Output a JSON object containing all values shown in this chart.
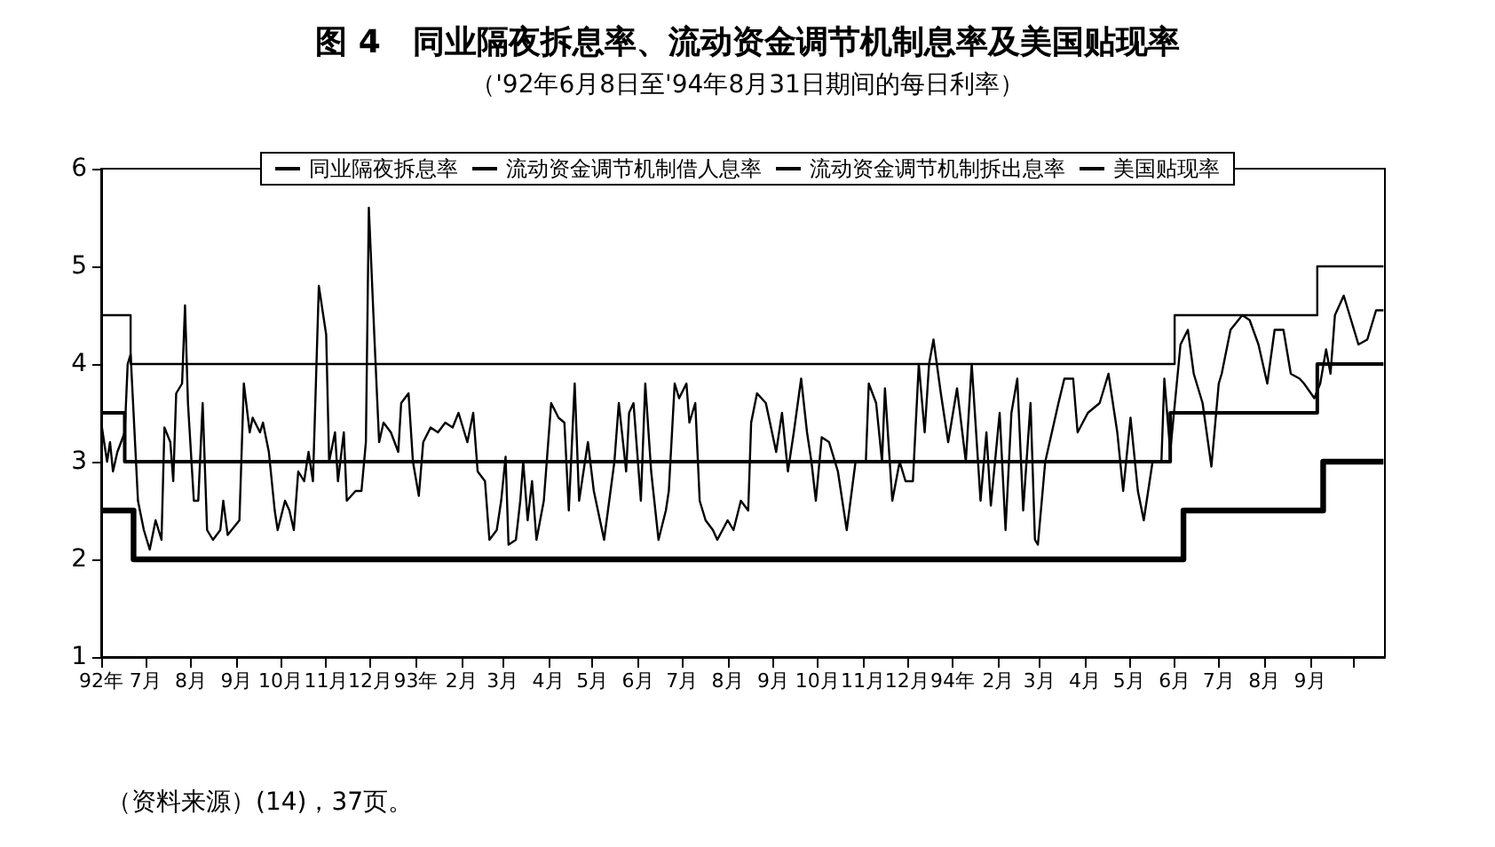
{
  "chart_data": {
    "type": "line",
    "title": "图 4　同业隔夜拆息率、流动资金调节机制息率及美国贴现率",
    "subtitle": "（'92年6月8日至'94年8月31日期间的每日利率）",
    "annotations": [
      "（资料来源）(14)，37页。"
    ],
    "legend": "top",
    "grid": false,
    "marker": "none",
    "line_style": "solid",
    "xlim": [
      "1992-06-01",
      "1994-10-22"
    ],
    "xticks": [
      {
        "value": "1992-06-01",
        "label": "92年"
      },
      {
        "value": "1992-07-01",
        "label": "7月"
      },
      {
        "value": "1992-08-01",
        "label": "8月"
      },
      {
        "value": "1992-09-01",
        "label": "9月"
      },
      {
        "value": "1992-10-01",
        "label": "10月"
      },
      {
        "value": "1992-11-01",
        "label": "11月"
      },
      {
        "value": "1992-12-01",
        "label": "12月"
      },
      {
        "value": "1993-01-01",
        "label": "93年"
      },
      {
        "value": "1993-02-01",
        "label": "2月"
      },
      {
        "value": "1993-03-01",
        "label": "3月"
      },
      {
        "value": "1993-04-01",
        "label": "4月"
      },
      {
        "value": "1993-05-01",
        "label": "5月"
      },
      {
        "value": "1993-06-01",
        "label": "6月"
      },
      {
        "value": "1993-07-01",
        "label": "7月"
      },
      {
        "value": "1993-08-01",
        "label": "8月"
      },
      {
        "value": "1993-09-01",
        "label": "9月"
      },
      {
        "value": "1993-10-01",
        "label": "10月"
      },
      {
        "value": "1993-11-01",
        "label": "11月"
      },
      {
        "value": "1993-12-01",
        "label": "12月"
      },
      {
        "value": "1994-01-01",
        "label": "94年"
      },
      {
        "value": "1994-02-01",
        "label": "2月"
      },
      {
        "value": "1994-03-01",
        "label": "3月"
      },
      {
        "value": "1994-04-01",
        "label": "4月"
      },
      {
        "value": "1994-05-01",
        "label": "5月"
      },
      {
        "value": "1994-06-01",
        "label": "6月"
      },
      {
        "value": "1994-07-01",
        "label": "7月"
      },
      {
        "value": "1994-08-01",
        "label": "8月"
      },
      {
        "value": "1994-09-01",
        "label": "9月"
      },
      {
        "value": "1994-10-01",
        "label": null
      }
    ],
    "ylim": [
      1,
      6
    ],
    "yticks": [
      1,
      2,
      3,
      4,
      5,
      6
    ],
    "series": [
      {
        "name": "同业隔夜拆息率",
        "type": "line",
        "color": "#000000",
        "x": [
          "1992-06-01",
          "1992-06-05",
          "1992-06-07",
          "1992-06-09",
          "1992-06-12",
          "1992-06-17",
          "1992-06-19",
          "1992-06-21",
          "1992-06-23",
          "1992-06-26",
          "1992-06-30",
          "1992-07-04",
          "1992-07-08",
          "1992-07-12",
          "1992-07-14",
          "1992-07-18",
          "1992-07-20",
          "1992-07-22",
          "1992-07-26",
          "1992-07-28",
          "1992-07-30",
          "1992-08-03",
          "1992-08-06",
          "1992-08-09",
          "1992-08-12",
          "1992-08-16",
          "1992-08-21",
          "1992-08-23",
          "1992-08-26",
          "1992-09-03",
          "1992-09-06",
          "1992-09-10",
          "1992-09-12",
          "1992-09-17",
          "1992-09-19",
          "1992-09-23",
          "1992-09-27",
          "1992-09-29",
          "1992-10-04",
          "1992-10-07",
          "1992-10-10",
          "1992-10-13",
          "1992-10-17",
          "1992-10-20",
          "1992-10-23",
          "1992-10-27",
          "1992-11-01",
          "1992-11-03",
          "1992-11-07",
          "1992-11-09",
          "1992-11-13",
          "1992-11-15",
          "1992-11-21",
          "1992-11-25",
          "1992-11-28",
          "1992-11-30",
          "1992-12-04",
          "1992-12-07",
          "1992-12-10",
          "1992-12-15",
          "1992-12-20",
          "1992-12-22",
          "1992-12-27",
          "1992-12-30",
          "1993-01-03",
          "1993-01-06",
          "1993-01-11",
          "1993-01-16",
          "1993-01-21",
          "1993-01-26",
          "1993-01-30",
          "1993-02-05",
          "1993-02-09",
          "1993-02-12",
          "1993-02-17",
          "1993-02-20",
          "1993-02-25",
          "1993-02-28",
          "1993-03-03",
          "1993-03-05",
          "1993-03-10",
          "1993-03-13",
          "1993-03-15",
          "1993-03-18",
          "1993-03-21",
          "1993-03-24",
          "1993-03-29",
          "1993-04-03",
          "1993-04-08",
          "1993-04-12",
          "1993-04-15",
          "1993-04-19",
          "1993-04-22",
          "1993-04-28",
          "1993-05-02",
          "1993-05-09",
          "1993-05-16",
          "1993-05-19",
          "1993-05-24",
          "1993-05-26",
          "1993-05-29",
          "1993-06-03",
          "1993-06-06",
          "1993-06-10",
          "1993-06-15",
          "1993-06-20",
          "1993-06-22",
          "1993-06-26",
          "1993-06-29",
          "1993-07-04",
          "1993-07-06",
          "1993-07-10",
          "1993-07-13",
          "1993-07-17",
          "1993-07-22",
          "1993-07-25",
          "1993-08-01",
          "1993-08-05",
          "1993-08-10",
          "1993-08-15",
          "1993-08-17",
          "1993-08-21",
          "1993-08-27",
          "1993-09-03",
          "1993-09-07",
          "1993-09-11",
          "1993-09-15",
          "1993-09-20",
          "1993-09-24",
          "1993-09-27",
          "1993-09-30",
          "1993-10-04",
          "1993-10-09",
          "1993-10-15",
          "1993-10-21",
          "1993-10-27",
          "1993-11-03",
          "1993-11-05",
          "1993-11-10",
          "1993-11-14",
          "1993-11-16",
          "1993-11-21",
          "1993-11-26",
          "1993-11-30",
          "1993-12-05",
          "1993-12-09",
          "1993-12-13",
          "1993-12-16",
          "1993-12-19",
          "1993-12-24",
          "1993-12-29",
          "1994-01-04",
          "1994-01-10",
          "1994-01-14",
          "1994-01-20",
          "1994-01-24",
          "1994-01-27",
          "1994-02-02",
          "1994-02-06",
          "1994-02-10",
          "1994-02-14",
          "1994-02-18",
          "1994-02-23",
          "1994-02-26",
          "1994-02-28",
          "1994-03-05",
          "1994-03-14",
          "1994-03-18",
          "1994-03-24",
          "1994-03-27",
          "1994-04-03",
          "1994-04-11",
          "1994-04-17",
          "1994-04-23",
          "1994-04-27",
          "1994-05-02",
          "1994-05-07",
          "1994-05-11",
          "1994-05-17",
          "1994-05-23",
          "1994-05-25",
          "1994-05-29",
          "1994-06-05",
          "1994-06-10",
          "1994-06-14",
          "1994-06-20",
          "1994-06-26",
          "1994-07-01",
          "1994-07-03",
          "1994-07-09",
          "1994-07-17",
          "1994-07-22",
          "1994-07-28",
          "1994-08-03",
          "1994-08-08",
          "1994-08-14",
          "1994-08-19",
          "1994-08-25",
          "1994-08-28",
          "1994-09-04",
          "1994-09-08",
          "1994-09-12",
          "1994-09-15",
          "1994-09-18",
          "1994-09-24",
          "1994-09-28",
          "1994-10-04",
          "1994-10-10",
          "1994-10-16",
          "1994-10-21"
        ],
        "values": [
          3.4,
          3.0,
          3.2,
          2.9,
          3.1,
          3.3,
          4.0,
          4.1,
          3.5,
          2.6,
          2.3,
          2.1,
          2.4,
          2.2,
          3.35,
          3.2,
          2.8,
          3.7,
          3.8,
          4.6,
          3.6,
          2.6,
          2.6,
          3.6,
          2.3,
          2.2,
          2.3,
          2.6,
          2.25,
          2.4,
          3.8,
          3.3,
          3.45,
          3.3,
          3.4,
          3.1,
          2.5,
          2.3,
          2.6,
          2.5,
          2.3,
          2.9,
          2.8,
          3.1,
          2.8,
          4.8,
          4.3,
          3.0,
          3.3,
          2.8,
          3.3,
          2.6,
          2.7,
          2.7,
          3.2,
          5.6,
          4.2,
          3.2,
          3.4,
          3.3,
          3.1,
          3.6,
          3.7,
          3.0,
          2.65,
          3.2,
          3.35,
          3.3,
          3.4,
          3.35,
          3.5,
          3.2,
          3.5,
          2.9,
          2.8,
          2.2,
          2.3,
          2.6,
          3.05,
          2.15,
          2.2,
          2.6,
          3.0,
          2.4,
          2.8,
          2.2,
          2.6,
          3.6,
          3.45,
          3.4,
          2.5,
          3.8,
          2.6,
          3.2,
          2.7,
          2.2,
          3.0,
          3.6,
          2.9,
          3.5,
          3.6,
          2.6,
          3.8,
          2.9,
          2.2,
          2.5,
          2.7,
          3.8,
          3.65,
          3.8,
          3.4,
          3.6,
          2.6,
          2.4,
          2.3,
          2.2,
          2.4,
          2.3,
          2.6,
          2.5,
          3.4,
          3.7,
          3.6,
          3.1,
          3.5,
          2.9,
          3.3,
          3.85,
          3.3,
          3.0,
          2.6,
          3.25,
          3.2,
          2.9,
          2.3,
          3.0,
          3.0,
          3.8,
          3.6,
          3.0,
          3.75,
          2.6,
          3.0,
          2.8,
          2.8,
          4.0,
          3.3,
          4.0,
          4.25,
          3.7,
          3.2,
          3.75,
          3.0,
          4.0,
          2.6,
          3.3,
          2.55,
          3.5,
          2.3,
          3.5,
          3.85,
          2.5,
          3.6,
          2.2,
          2.15,
          3.0,
          3.6,
          3.85,
          3.85,
          3.3,
          3.5,
          3.6,
          3.9,
          3.3,
          2.7,
          3.45,
          2.7,
          2.4,
          3.0,
          3.0,
          3.85,
          3.1,
          4.2,
          4.35,
          3.9,
          3.6,
          2.95,
          3.8,
          3.9,
          4.35,
          4.5,
          4.45,
          4.2,
          3.8,
          4.35,
          4.35,
          3.9,
          3.85,
          3.8,
          3.65,
          3.8,
          4.15,
          3.9,
          4.5,
          4.7,
          4.5,
          4.2,
          4.25,
          4.55,
          4.55
        ]
      },
      {
        "name": "流动资金调节机制借人息率",
        "type": "step",
        "color": "#000000",
        "x": [
          "1992-06-01",
          "1992-06-23",
          "1994-06-07",
          "1994-09-10",
          "1994-10-21"
        ],
        "values": [
          2.5,
          2.0,
          2.5,
          3.0,
          3.0
        ]
      },
      {
        "name": "流动资金调节机制拆出息率",
        "type": "step",
        "color": "#000000",
        "x": [
          "1992-06-01",
          "1992-06-21",
          "1994-06-01",
          "1994-09-06",
          "1994-10-21"
        ],
        "values": [
          4.5,
          4.0,
          4.5,
          5.0,
          5.0
        ]
      },
      {
        "name": "美国贴现率",
        "type": "step",
        "color": "#000000",
        "x": [
          "1992-06-01",
          "1992-06-17",
          "1994-05-29",
          "1994-09-06",
          "1994-10-21"
        ],
        "values": [
          3.5,
          3.0,
          3.5,
          4.0,
          4.0
        ]
      }
    ]
  }
}
